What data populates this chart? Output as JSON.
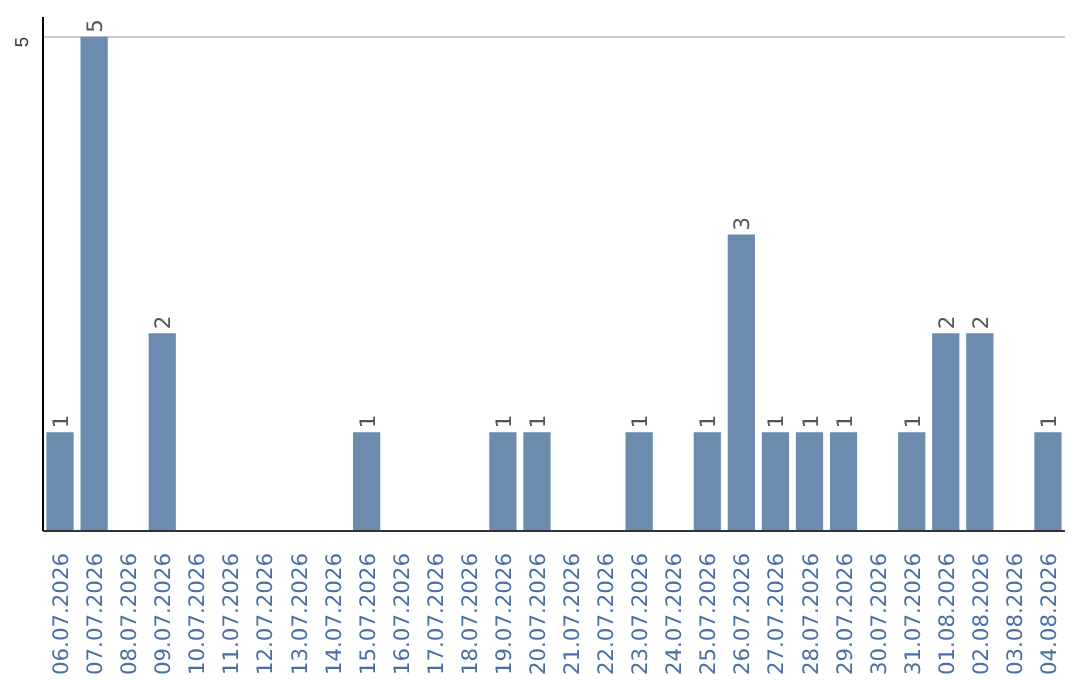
{
  "chart_data": {
    "type": "bar",
    "categories": [
      "06.07.2026",
      "07.07.2026",
      "08.07.2026",
      "09.07.2026",
      "10.07.2026",
      "11.07.2026",
      "12.07.2026",
      "13.07.2026",
      "14.07.2026",
      "15.07.2026",
      "16.07.2026",
      "17.07.2026",
      "18.07.2026",
      "19.07.2026",
      "20.07.2026",
      "21.07.2026",
      "22.07.2026",
      "23.07.2026",
      "24.07.2026",
      "25.07.2026",
      "26.07.2026",
      "27.07.2026",
      "28.07.2026",
      "29.07.2026",
      "30.07.2026",
      "31.07.2026",
      "01.08.2026",
      "02.08.2026",
      "03.08.2026",
      "04.08.2026"
    ],
    "values": [
      1,
      5,
      0,
      2,
      0,
      0,
      0,
      0,
      0,
      1,
      0,
      0,
      0,
      1,
      1,
      0,
      0,
      1,
      0,
      1,
      3,
      1,
      1,
      1,
      0,
      1,
      2,
      2,
      0,
      1
    ],
    "value_labels": [
      "1",
      "5",
      null,
      "2",
      null,
      null,
      null,
      null,
      null,
      "1",
      null,
      null,
      null,
      "1",
      "1",
      null,
      null,
      "1",
      null,
      "1",
      "3",
      "1",
      "1",
      "1",
      null,
      "1",
      "2",
      "2",
      null,
      "1"
    ],
    "color": "#6b8caf",
    "ylim": [
      0,
      5.2
    ],
    "yticks": [
      5
    ],
    "grid": "y"
  }
}
